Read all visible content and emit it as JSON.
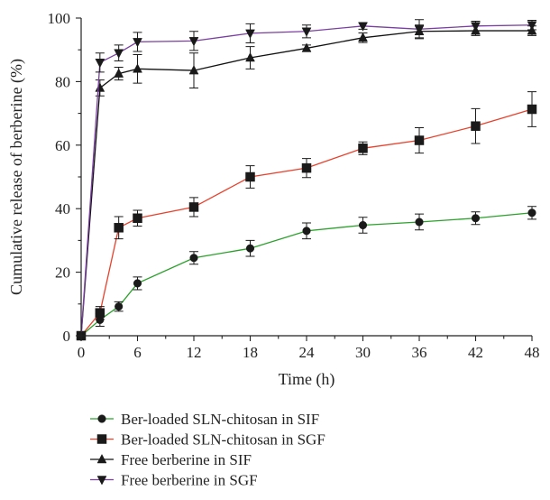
{
  "chart_data": {
    "type": "line",
    "xlabel": "Time (h)",
    "ylabel": "Cumulative release of berberine (%)",
    "xlim": [
      0,
      48
    ],
    "ylim": [
      0,
      100
    ],
    "xticks": [
      0,
      6,
      12,
      18,
      24,
      30,
      36,
      42,
      48
    ],
    "yticks": [
      0,
      20,
      40,
      60,
      80,
      100
    ],
    "grid": false,
    "legend_position": "bottom",
    "x": [
      0,
      2,
      4,
      6,
      12,
      18,
      24,
      30,
      36,
      42,
      48
    ],
    "series": [
      {
        "name": "Ber-loaded SLN-chitosan in SIF",
        "color": "#2ca02c",
        "marker": "circle",
        "values": [
          0,
          5,
          9.2,
          16.5,
          24.5,
          27.5,
          33,
          34.8,
          35.8,
          37,
          38.7
        ],
        "errors": [
          0,
          2,
          1.5,
          2,
          2,
          2.5,
          2.5,
          2.5,
          2.5,
          2,
          2
        ]
      },
      {
        "name": "Ber-loaded SLN-chitosan in SGF",
        "color": "#e8412c",
        "marker": "square",
        "values": [
          0,
          7.2,
          34,
          37,
          40.5,
          50,
          52.8,
          59,
          61.5,
          66,
          71.3
        ],
        "errors": [
          0,
          2,
          3.5,
          2.5,
          3,
          3.5,
          3,
          2,
          4,
          5.5,
          5.5
        ]
      },
      {
        "name": "Free berberine in SIF",
        "color": "#111111",
        "marker": "triangle-up",
        "values": [
          0,
          78,
          82.5,
          84,
          83.5,
          87.5,
          90.5,
          93.8,
          95.8,
          96,
          96
        ],
        "errors": [
          0,
          2.5,
          2,
          4.5,
          5.5,
          3.5,
          1,
          1.5,
          2,
          1.5,
          1.5
        ]
      },
      {
        "name": "Free berberine in SGF",
        "color": "#7a3fa0",
        "marker": "triangle-down",
        "values": [
          0,
          86,
          89,
          92.5,
          92.8,
          95.2,
          95.8,
          97.5,
          96.5,
          97.5,
          97.8
        ],
        "errors": [
          0,
          3,
          2.5,
          3,
          3,
          3,
          2,
          1,
          3,
          1.5,
          1.5
        ]
      }
    ]
  }
}
